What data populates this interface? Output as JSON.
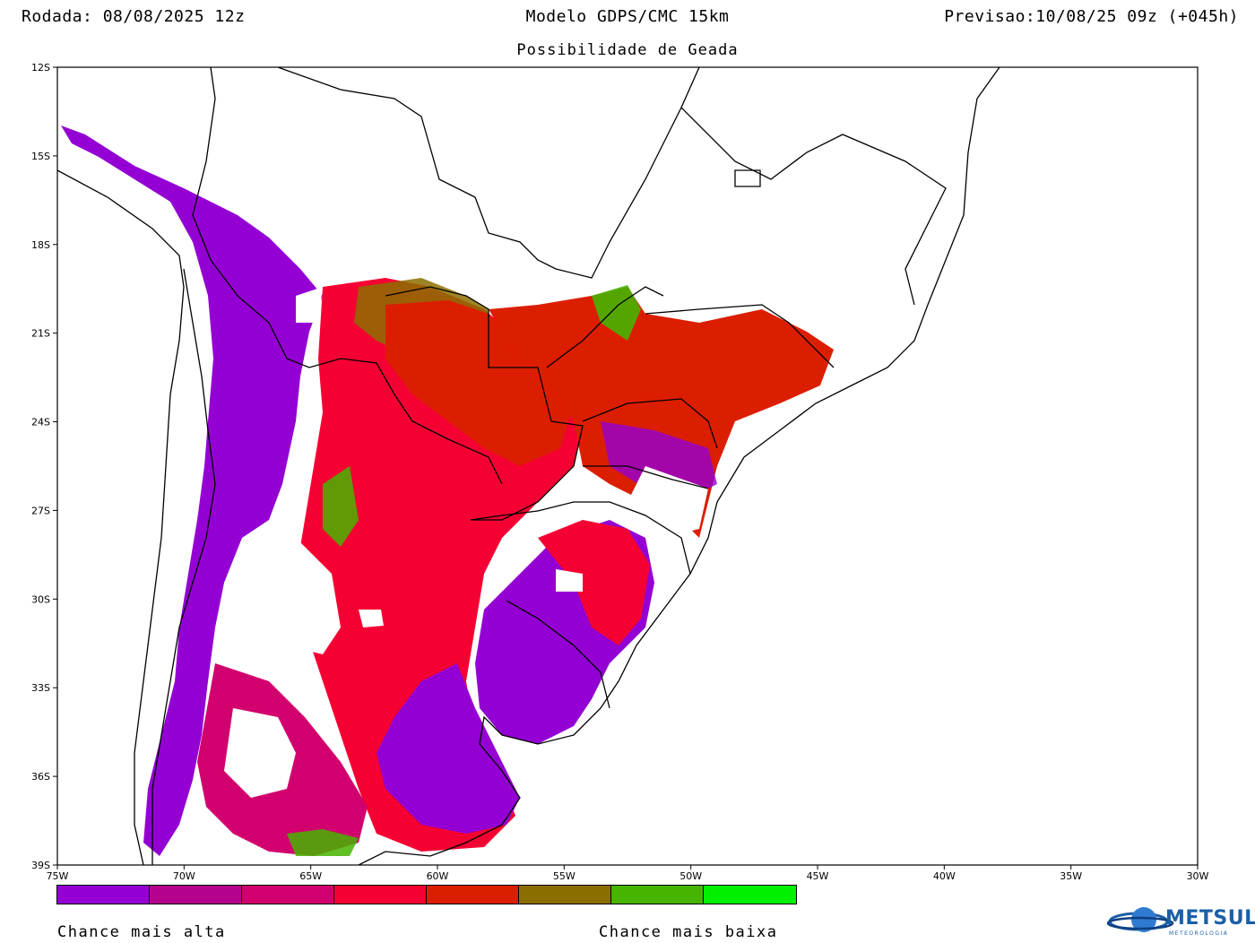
{
  "header": {
    "run": "Rodada: 08/08/2025 12z",
    "model": "Modelo GDPS/CMC 15km",
    "valid": "Previsao:10/08/25 09z (+045h)",
    "subtitle": "Possibilidade de Geada"
  },
  "axes": {
    "lat_ticks": [
      "12S",
      "15S",
      "18S",
      "21S",
      "24S",
      "27S",
      "30S",
      "33S",
      "36S",
      "39S"
    ],
    "lon_ticks": [
      "75W",
      "70W",
      "65W",
      "60W",
      "55W",
      "50W",
      "45W",
      "40W",
      "35W",
      "30W"
    ],
    "lat_range": [
      -39,
      -12
    ],
    "lon_range": [
      -75,
      -30
    ]
  },
  "legend": {
    "colors": [
      "#9400d3",
      "#b4008c",
      "#d2006e",
      "#f50032",
      "#dc1e00",
      "#8c6e00",
      "#46b400",
      "#00f000"
    ],
    "label_high": "Chance mais alta",
    "label_low": "Chance mais baixa"
  },
  "logo": {
    "name": "METSUL",
    "subtitle": "METEOROLOGIA",
    "icon": "globe-icon"
  }
}
